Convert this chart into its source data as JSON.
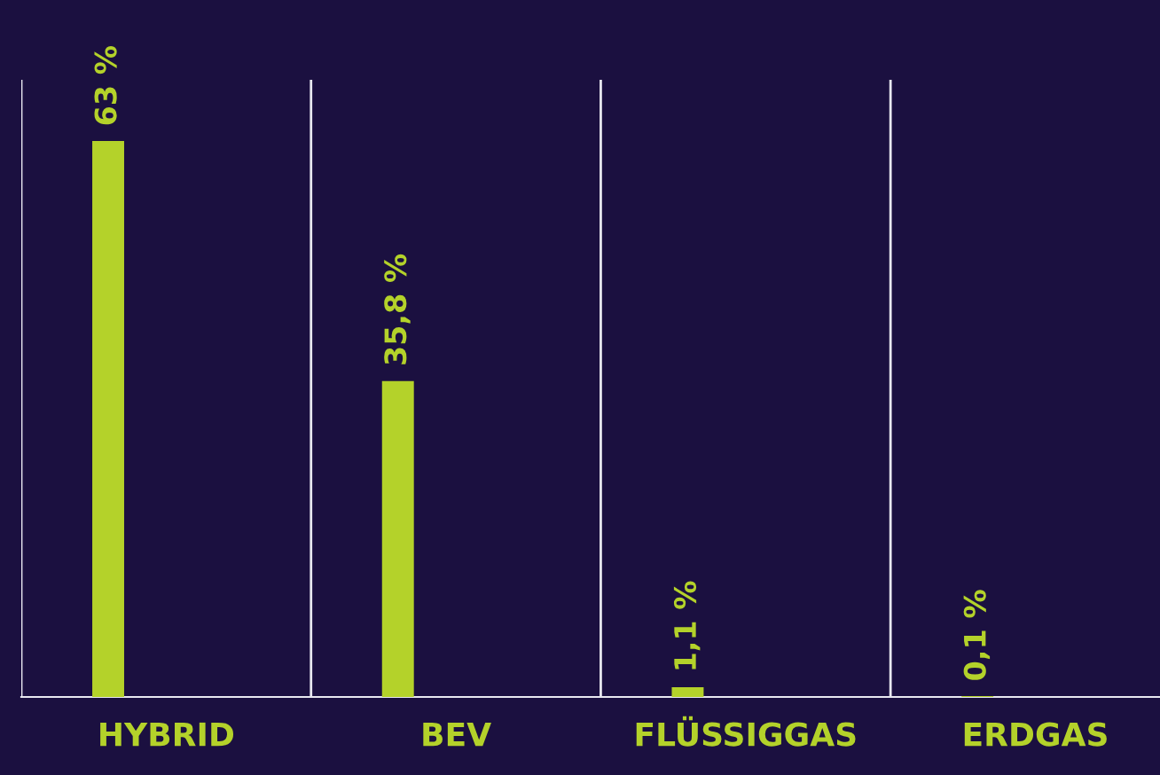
{
  "chart_data": {
    "type": "bar",
    "categories": [
      "HYBRID",
      "BEV",
      "FLÜSSIGGAS",
      "ERDGAS"
    ],
    "values": [
      63,
      35.8,
      1.1,
      0.1
    ],
    "value_labels": [
      "63 %",
      "35,8 %",
      "1,1 %",
      "0,1 %"
    ],
    "color": "#b4d22a",
    "grid": "x",
    "legend": false
  }
}
